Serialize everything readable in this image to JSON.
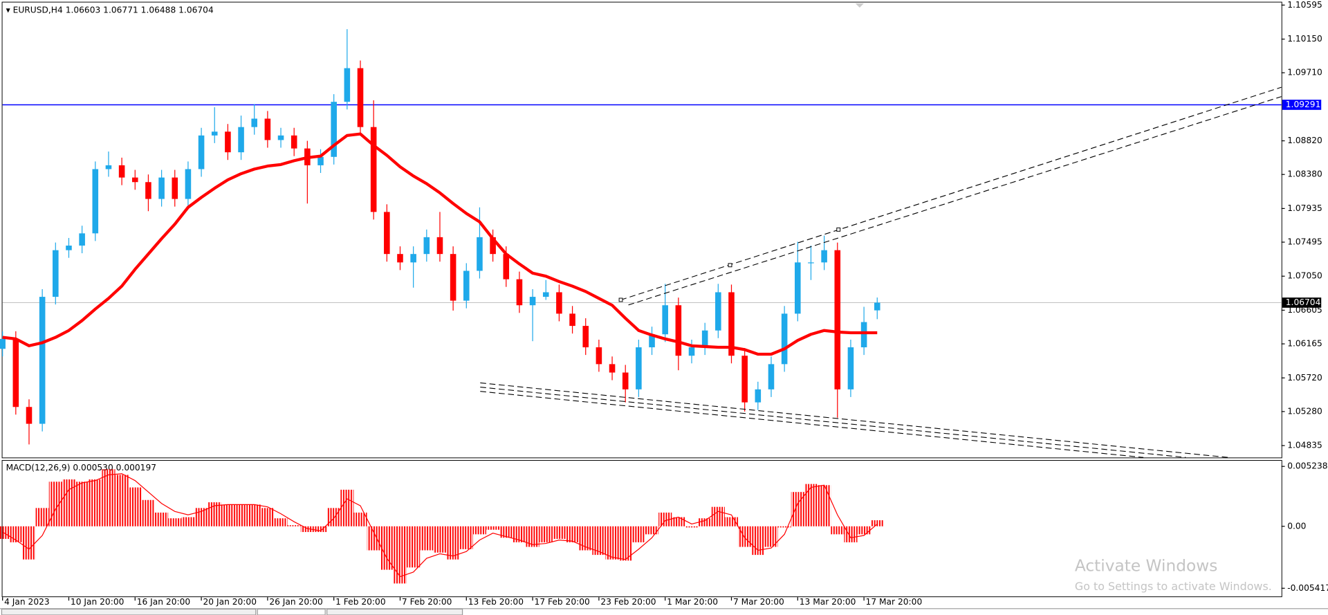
{
  "chart_data": [
    {
      "type": "candlestick",
      "symbol": "EURUSD,H4",
      "up_color": "#1fa9ea",
      "down_color": "#ff0000",
      "open": [
        1.061,
        1.0623,
        1.0534,
        1.0512,
        1.0678,
        1.0739,
        1.0745,
        1.0761,
        1.0845,
        1.085,
        1.0834,
        1.0828,
        1.0806,
        1.0834,
        1.0806,
        1.0845,
        1.0889,
        1.0894,
        1.0867,
        1.09,
        1.0911,
        1.0883,
        1.0889,
        1.0872,
        1.085,
        1.0861,
        1.0933,
        1.0977,
        1.09,
        1.0789,
        1.0734,
        1.0723,
        1.0734,
        1.0756,
        1.0734,
        1.0673,
        1.0712,
        1.0756,
        1.0734,
        1.0701,
        1.0667,
        1.0678,
        1.0684,
        1.0656,
        1.064,
        1.0612,
        1.059,
        1.0579,
        1.0557,
        1.0612,
        1.0629,
        1.0667,
        1.0601,
        1.0612,
        1.0634,
        1.0684,
        1.0601,
        1.054,
        1.0557,
        1.059,
        1.0656,
        1.0723,
        1.0723,
        1.0739,
        1.0557,
        1.0612,
        1.06603
      ],
      "high": [
        1.0633,
        1.0633,
        1.0544,
        1.0688,
        1.0749,
        1.0755,
        1.0771,
        1.0855,
        1.0868,
        1.086,
        1.0844,
        1.0838,
        1.0844,
        1.0844,
        1.0855,
        1.0899,
        1.0926,
        1.0904,
        1.0915,
        1.093,
        1.0921,
        1.0899,
        1.0899,
        1.0882,
        1.0871,
        1.0943,
        1.1028,
        1.0987,
        1.0935,
        1.0799,
        1.0744,
        1.0744,
        1.0766,
        1.0789,
        1.0744,
        1.0722,
        1.0795,
        1.0766,
        1.0744,
        1.0711,
        1.0688,
        1.07,
        1.0694,
        1.0666,
        1.065,
        1.0622,
        1.06,
        1.0589,
        1.0622,
        1.0639,
        1.0695,
        1.0677,
        1.0622,
        1.0644,
        1.0695,
        1.0694,
        1.0611,
        1.0567,
        1.06,
        1.0666,
        1.075,
        1.0745,
        1.0758,
        1.0749,
        1.0622,
        1.0665,
        1.06771
      ],
      "low": [
        1.06,
        1.0524,
        1.0485,
        1.0502,
        1.0668,
        1.0729,
        1.0735,
        1.0751,
        1.0835,
        1.0824,
        1.0818,
        1.079,
        1.0796,
        1.0796,
        1.0796,
        1.0835,
        1.0879,
        1.0857,
        1.0857,
        1.089,
        1.0873,
        1.0873,
        1.0862,
        1.08,
        1.084,
        1.0851,
        1.0923,
        1.089,
        1.0779,
        1.0724,
        1.0713,
        1.069,
        1.0724,
        1.0724,
        1.066,
        1.0663,
        1.0702,
        1.0724,
        1.0691,
        1.0657,
        1.062,
        1.0674,
        1.0646,
        1.063,
        1.0602,
        1.058,
        1.0569,
        1.054,
        1.0547,
        1.0602,
        1.0619,
        1.0582,
        1.0591,
        1.0602,
        1.0624,
        1.0591,
        1.0528,
        1.053,
        1.0547,
        1.058,
        1.0646,
        1.07,
        1.0713,
        1.052,
        1.0547,
        1.0602,
        1.06488
      ],
      "close": [
        1.0623,
        1.0534,
        1.0512,
        1.0678,
        1.0739,
        1.0745,
        1.0761,
        1.0845,
        1.085,
        1.0834,
        1.0828,
        1.0806,
        1.0834,
        1.0806,
        1.0845,
        1.0889,
        1.0894,
        1.0867,
        1.09,
        1.0911,
        1.0883,
        1.0889,
        1.0872,
        1.085,
        1.0861,
        1.0933,
        1.0977,
        1.09,
        1.0789,
        1.0734,
        1.0723,
        1.0734,
        1.0756,
        1.0734,
        1.0673,
        1.0712,
        1.0756,
        1.0734,
        1.0701,
        1.0667,
        1.0678,
        1.0684,
        1.0656,
        1.064,
        1.0612,
        1.059,
        1.0579,
        1.0557,
        1.0612,
        1.0629,
        1.0667,
        1.0601,
        1.0612,
        1.0634,
        1.0684,
        1.0601,
        1.054,
        1.0557,
        1.059,
        1.0656,
        1.0723,
        1.0723,
        1.0739,
        1.0557,
        1.0612,
        1.0645,
        1.06704
      ],
      "ma": {
        "color": "#ff0000",
        "values": [
          1.0625,
          1.0623,
          1.0614,
          1.0618,
          1.0625,
          1.0634,
          1.0647,
          1.0662,
          1.0676,
          1.0692,
          1.0714,
          1.0734,
          1.0754,
          1.0773,
          1.0795,
          1.0808,
          1.082,
          1.0831,
          1.0839,
          1.0845,
          1.0849,
          1.0851,
          1.0856,
          1.086,
          1.0862,
          1.0876,
          1.0889,
          1.0891,
          1.0876,
          1.0863,
          1.0848,
          1.0836,
          1.0826,
          1.0814,
          1.08,
          1.0787,
          1.0776,
          1.0754,
          1.0734,
          1.0721,
          1.0709,
          1.0705,
          1.0698,
          1.0692,
          1.0685,
          1.0676,
          1.0667,
          1.065,
          1.0634,
          1.0628,
          1.0623,
          1.0619,
          1.0614,
          1.0613,
          1.0612,
          1.0612,
          1.0609,
          1.0603,
          1.0603,
          1.061,
          1.0621,
          1.0629,
          1.0634,
          1.0632,
          1.0631,
          1.0631,
          1.0631
        ]
      },
      "hline": {
        "value": 1.09291,
        "color": "#0000ff"
      },
      "bid_color": "#c0c0c0",
      "xlim": [
        0,
        96.5
      ],
      "xticks": [
        {
          "value": 0,
          "label": "4 Jan 2023"
        },
        {
          "value": 5,
          "label": "10 Jan 20:00"
        },
        {
          "value": 10,
          "label": "16 Jan 20:00"
        },
        {
          "value": 15,
          "label": "20 Jan 20:00"
        },
        {
          "value": 20,
          "label": "26 Jan 20:00"
        },
        {
          "value": 25,
          "label": "1 Feb 20:00"
        },
        {
          "value": 30,
          "label": "7 Feb 20:00"
        },
        {
          "value": 35,
          "label": "13 Feb 20:00"
        },
        {
          "value": 40,
          "label": "17 Feb 20:00"
        },
        {
          "value": 45,
          "label": "23 Feb 20:00"
        },
        {
          "value": 50,
          "label": "1 Mar 20:00"
        },
        {
          "value": 55,
          "label": "7 Mar 20:00"
        },
        {
          "value": 60,
          "label": "13 Mar 20:00"
        },
        {
          "value": 65,
          "label": "17 Mar 20:00"
        }
      ],
      "ylim": [
        1.0468,
        1.10628
      ],
      "yticks": [
        1.10595,
        {
          "value": 1.1015,
          "label": "1.10150"
        },
        {
          "value": 1.0971,
          "label": "1.09710"
        },
        {
          "value": 1.0882,
          "label": "1.08820"
        },
        {
          "value": 1.0838,
          "label": "1.08380"
        },
        1.07935,
        1.07495,
        {
          "value": 1.0705,
          "label": "1.07050"
        },
        1.06605,
        1.06165,
        {
          "value": 1.0572,
          "label": "1.05720"
        },
        {
          "value": 1.0528,
          "label": "1.05280"
        },
        1.04835
      ]
    },
    {
      "type": "macd",
      "title": "MACD(12,26,9)",
      "histogram": {
        "color": "#ff0000",
        "last_label": "0.000530",
        "values": [
          -0.0011,
          -0.0014,
          -0.0029,
          0.0016,
          0.0039,
          0.0041,
          0.0039,
          0.0041,
          0.005,
          0.0045,
          0.0034,
          0.0023,
          0.0012,
          0.0007,
          0.0008,
          0.0016,
          0.0021,
          0.0019,
          0.0019,
          0.0019,
          0.0016,
          0.0007,
          0.0001,
          -0.0005,
          -0.0005,
          0.0016,
          0.0032,
          0.0012,
          -0.0021,
          -0.0038,
          -0.005,
          -0.0036,
          -0.0021,
          -0.0023,
          -0.0029,
          -0.002,
          -0.0007,
          -0.0003,
          -0.001,
          -0.0014,
          -0.0018,
          -0.0014,
          -0.0011,
          -0.0014,
          -0.0021,
          -0.0025,
          -0.0029,
          -0.003,
          -0.0014,
          -0.0007,
          0.0012,
          0.0008,
          -0.0001,
          0.0007,
          0.0017,
          0.0008,
          -0.0018,
          -0.0025,
          -0.0018,
          -0.0001,
          0.003,
          0.0037,
          0.0036,
          -0.0007,
          -0.0014,
          -0.0007,
          0.00053
        ]
      },
      "signal": {
        "color": "#ff0000",
        "last_label": "0.000197",
        "values": [
          -0.0005,
          -0.0012,
          -0.002,
          -0.0008,
          0.0015,
          0.0032,
          0.0038,
          0.004,
          0.0045,
          0.0046,
          0.004,
          0.003,
          0.002,
          0.0013,
          0.001,
          0.0013,
          0.0018,
          0.0019,
          0.0019,
          0.0019,
          0.0017,
          0.0011,
          0.0004,
          -0.0002,
          -0.0004,
          0.0007,
          0.0024,
          0.0018,
          -0.0005,
          -0.0028,
          -0.0044,
          -0.004,
          -0.0028,
          -0.0024,
          -0.0026,
          -0.0022,
          -0.0012,
          -0.0006,
          -0.0009,
          -0.0012,
          -0.0016,
          -0.0015,
          -0.0012,
          -0.0013,
          -0.0018,
          -0.0022,
          -0.0027,
          -0.0029,
          -0.002,
          -0.001,
          0.0005,
          0.0008,
          0.0002,
          0.0005,
          0.0013,
          0.001,
          -0.001,
          -0.0021,
          -0.0019,
          -0.0007,
          0.002,
          0.0034,
          0.0036,
          0.001,
          -0.001,
          -0.0008,
          0.000197
        ]
      },
      "ylim": [
        -0.0062,
        0.0058
      ],
      "yticks": [
        0.005238,
        {
          "value": 0,
          "label": "0.00"
        },
        -0.005417
      ]
    }
  ],
  "watermark": {
    "title": "Activate Windows",
    "subtitle": "Go to Settings to activate Windows."
  }
}
